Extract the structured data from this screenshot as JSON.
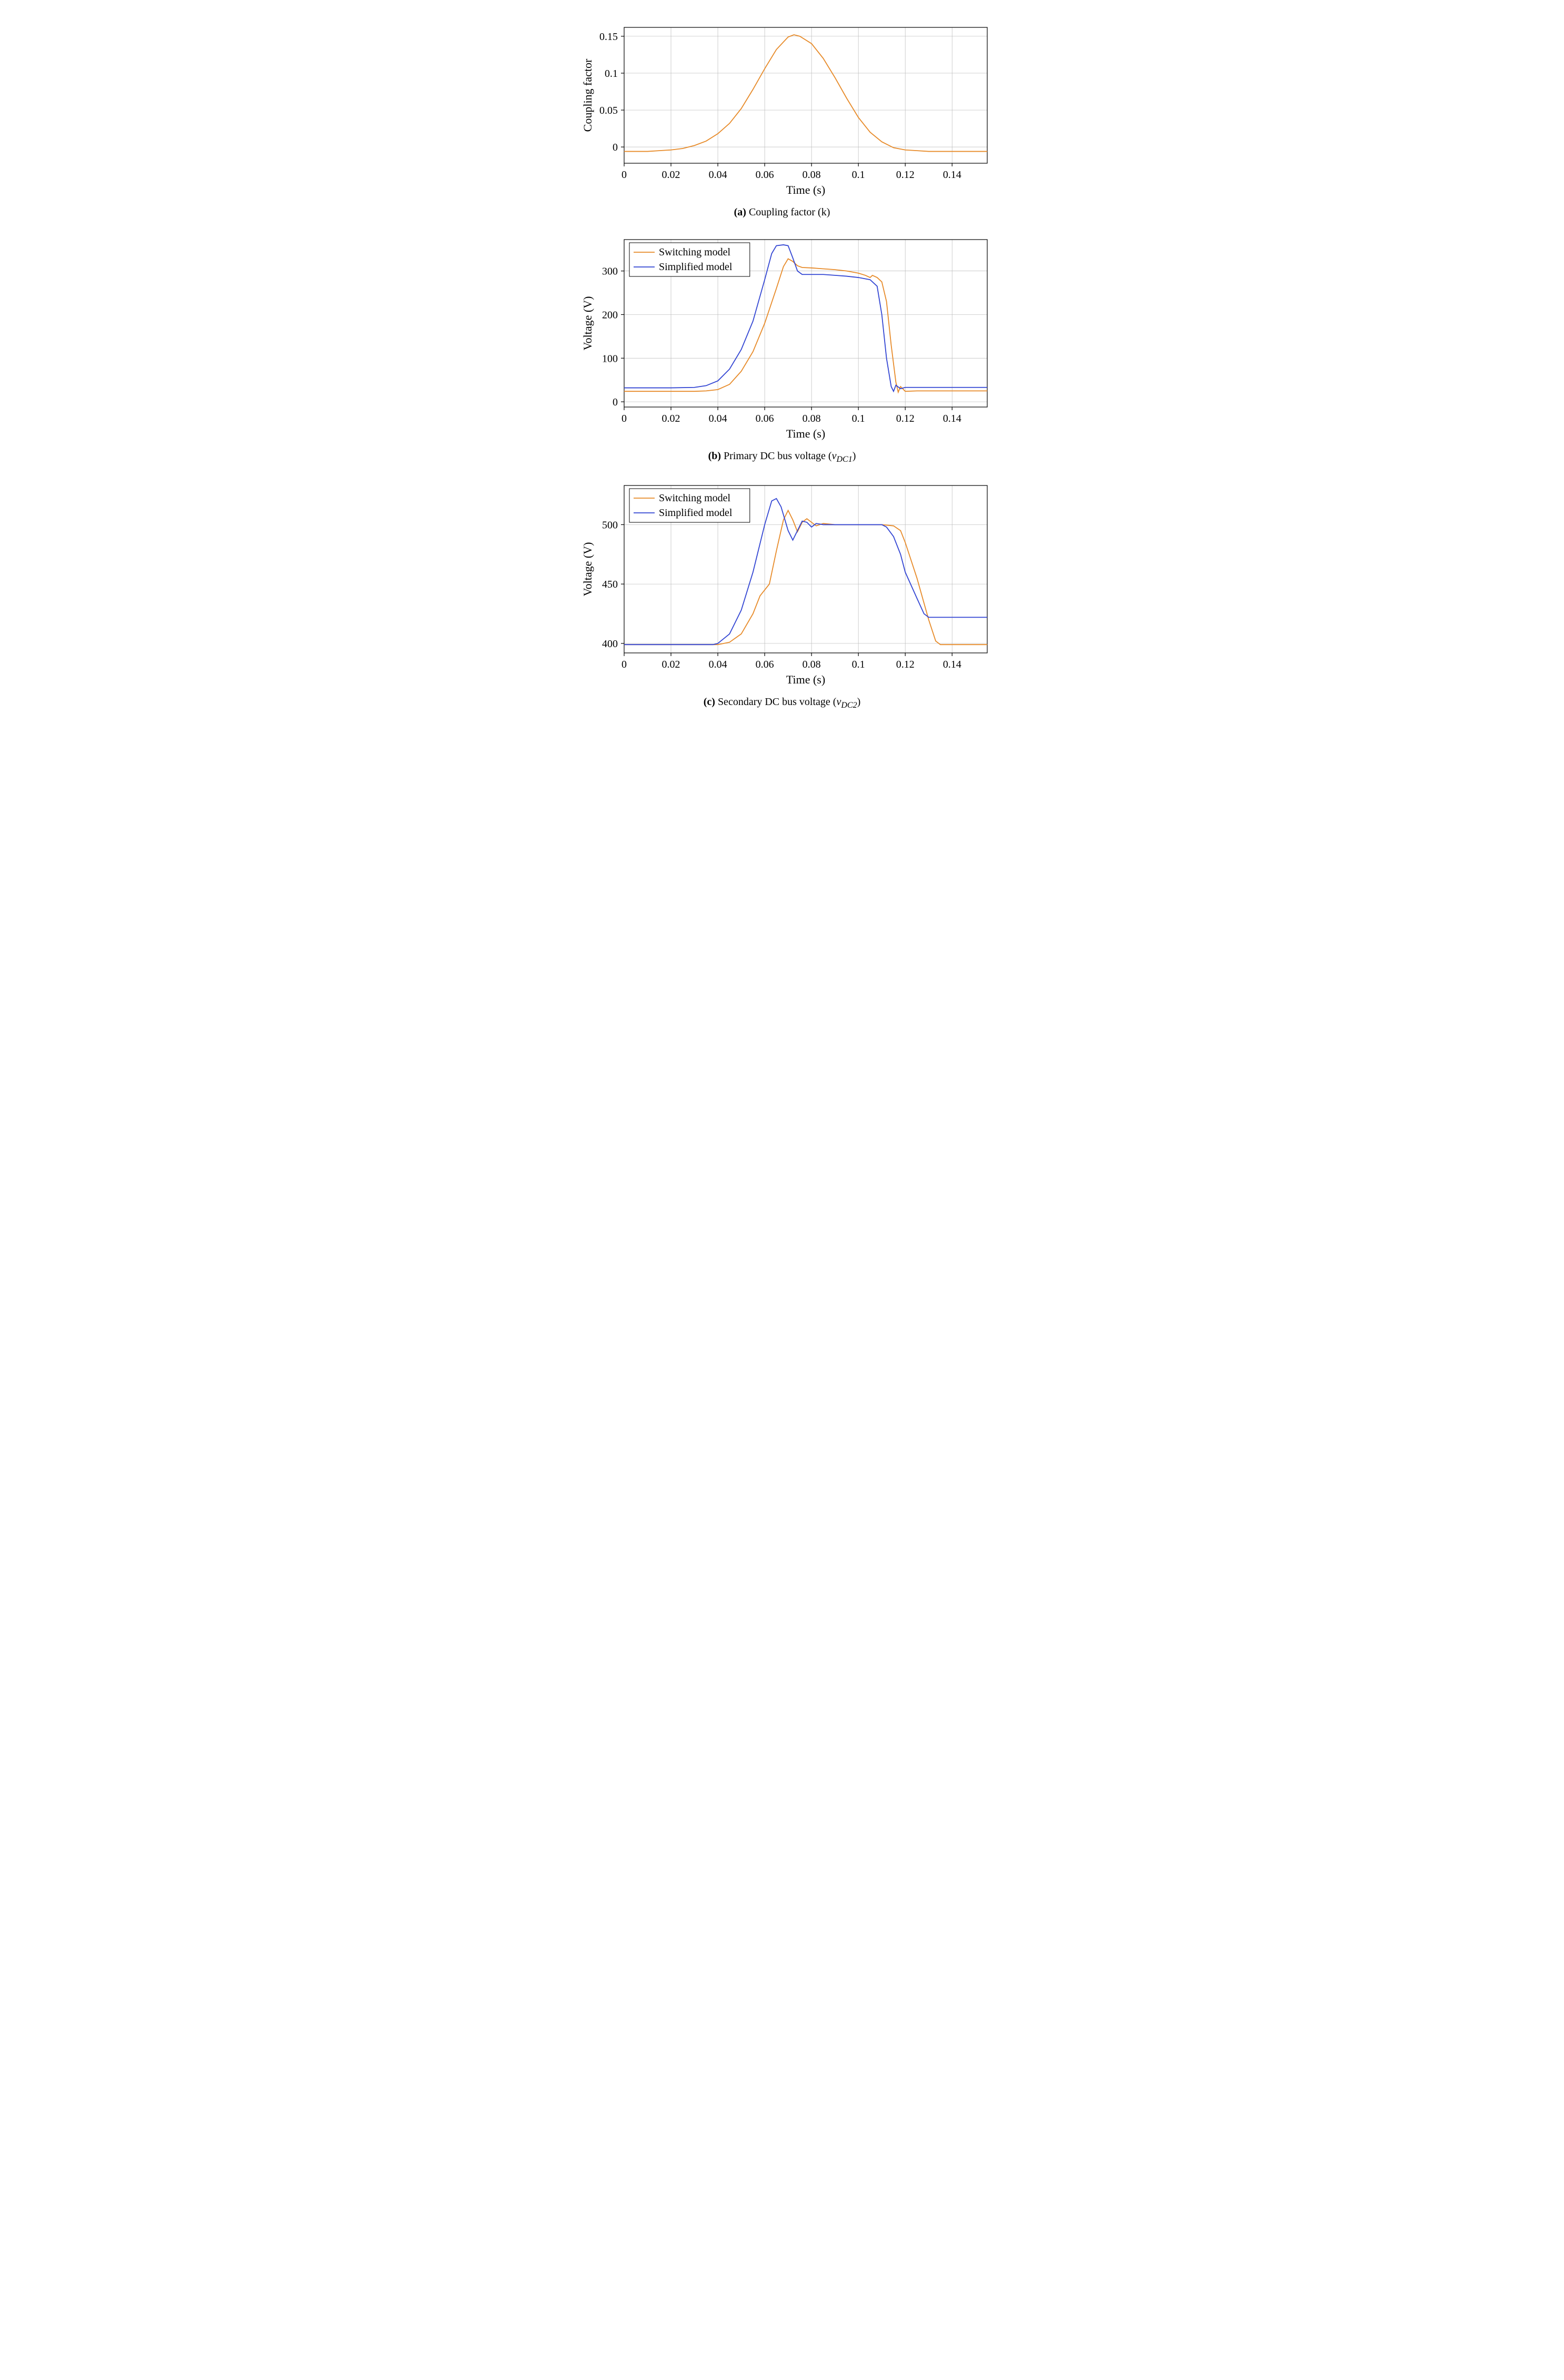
{
  "global": {
    "font_family": "Georgia, serif",
    "axis_color": "#000000",
    "grid_color": "#b8b8b8",
    "background": "#ffffff",
    "line_width": 1.8,
    "tick_fontsize": 20,
    "axis_label_fontsize": 22,
    "caption_fontsize": 20
  },
  "chart_a": {
    "type": "line",
    "xlabel": "Time (s)",
    "ylabel": "Coupling factor",
    "caption_prefix": "(a)",
    "caption_text": " Coupling factor (k)",
    "xlim": [
      0,
      0.155
    ],
    "ylim": [
      -0.022,
      0.162
    ],
    "xticks": [
      0,
      0.02,
      0.04,
      0.06,
      0.08,
      0.1,
      0.12,
      0.14
    ],
    "xtick_labels": [
      "0",
      "0.02",
      "0.04",
      "0.06",
      "0.08",
      "0.1",
      "0.12",
      "0.14"
    ],
    "yticks": [
      0,
      0.05,
      0.1,
      0.15
    ],
    "ytick_labels": [
      "0",
      "0.05",
      "0.1",
      "0.15"
    ],
    "series": [
      {
        "name": "k",
        "color": "#e78b2a",
        "data": [
          [
            0,
            -0.006
          ],
          [
            0.005,
            -0.006
          ],
          [
            0.01,
            -0.006
          ],
          [
            0.015,
            -0.005
          ],
          [
            0.02,
            -0.004
          ],
          [
            0.025,
            -0.002
          ],
          [
            0.03,
            0.002
          ],
          [
            0.035,
            0.008
          ],
          [
            0.04,
            0.018
          ],
          [
            0.045,
            0.032
          ],
          [
            0.05,
            0.052
          ],
          [
            0.055,
            0.078
          ],
          [
            0.06,
            0.106
          ],
          [
            0.065,
            0.132
          ],
          [
            0.07,
            0.149
          ],
          [
            0.0725,
            0.152
          ],
          [
            0.075,
            0.15
          ],
          [
            0.08,
            0.14
          ],
          [
            0.085,
            0.12
          ],
          [
            0.09,
            0.094
          ],
          [
            0.095,
            0.066
          ],
          [
            0.1,
            0.04
          ],
          [
            0.105,
            0.02
          ],
          [
            0.11,
            0.007
          ],
          [
            0.115,
            -0.001
          ],
          [
            0.12,
            -0.004
          ],
          [
            0.125,
            -0.005
          ],
          [
            0.13,
            -0.006
          ],
          [
            0.14,
            -0.006
          ],
          [
            0.15,
            -0.006
          ],
          [
            0.155,
            -0.006
          ]
        ]
      }
    ]
  },
  "chart_b": {
    "type": "line",
    "xlabel": "Time (s)",
    "ylabel": "Voltage (V)",
    "caption_prefix": "(b)",
    "caption_text_pre": " Primary DC bus voltage (",
    "caption_var": "v",
    "caption_sub": "DC1",
    "caption_text_post": ")",
    "xlim": [
      0,
      0.155
    ],
    "ylim": [
      -12,
      372
    ],
    "xticks": [
      0,
      0.02,
      0.04,
      0.06,
      0.08,
      0.1,
      0.12,
      0.14
    ],
    "xtick_labels": [
      "0",
      "0.02",
      "0.04",
      "0.06",
      "0.08",
      "0.1",
      "0.12",
      "0.14"
    ],
    "yticks": [
      0,
      100,
      200,
      300
    ],
    "ytick_labels": [
      "0",
      "100",
      "200",
      "300"
    ],
    "legend": {
      "position": "top-left",
      "items": [
        {
          "label": "Switching model",
          "color": "#e78b2a"
        },
        {
          "label": "Simplified model",
          "color": "#3346d3"
        }
      ]
    },
    "series": [
      {
        "name": "switching",
        "color": "#e78b2a",
        "data": [
          [
            0,
            24
          ],
          [
            0.01,
            24
          ],
          [
            0.02,
            24
          ],
          [
            0.03,
            24
          ],
          [
            0.035,
            25
          ],
          [
            0.04,
            28
          ],
          [
            0.045,
            40
          ],
          [
            0.05,
            70
          ],
          [
            0.055,
            115
          ],
          [
            0.06,
            180
          ],
          [
            0.065,
            260
          ],
          [
            0.068,
            310
          ],
          [
            0.07,
            328
          ],
          [
            0.072,
            322
          ],
          [
            0.074,
            312
          ],
          [
            0.076,
            308
          ],
          [
            0.08,
            307
          ],
          [
            0.085,
            305
          ],
          [
            0.09,
            303
          ],
          [
            0.095,
            300
          ],
          [
            0.1,
            295
          ],
          [
            0.103,
            290
          ],
          [
            0.105,
            285
          ],
          [
            0.106,
            290
          ],
          [
            0.108,
            285
          ],
          [
            0.11,
            275
          ],
          [
            0.112,
            230
          ],
          [
            0.114,
            130
          ],
          [
            0.116,
            45
          ],
          [
            0.117,
            22
          ],
          [
            0.118,
            35
          ],
          [
            0.12,
            24
          ],
          [
            0.125,
            25
          ],
          [
            0.13,
            25
          ],
          [
            0.14,
            25
          ],
          [
            0.15,
            25
          ],
          [
            0.155,
            25
          ]
        ]
      },
      {
        "name": "simplified",
        "color": "#3346d3",
        "data": [
          [
            0,
            32
          ],
          [
            0.01,
            32
          ],
          [
            0.02,
            32
          ],
          [
            0.03,
            33
          ],
          [
            0.035,
            37
          ],
          [
            0.04,
            48
          ],
          [
            0.045,
            75
          ],
          [
            0.05,
            120
          ],
          [
            0.055,
            185
          ],
          [
            0.06,
            280
          ],
          [
            0.063,
            340
          ],
          [
            0.065,
            358
          ],
          [
            0.068,
            360
          ],
          [
            0.07,
            358
          ],
          [
            0.072,
            330
          ],
          [
            0.074,
            300
          ],
          [
            0.076,
            292
          ],
          [
            0.08,
            292
          ],
          [
            0.085,
            292
          ],
          [
            0.09,
            290
          ],
          [
            0.095,
            288
          ],
          [
            0.1,
            285
          ],
          [
            0.105,
            280
          ],
          [
            0.108,
            265
          ],
          [
            0.11,
            200
          ],
          [
            0.112,
            100
          ],
          [
            0.114,
            35
          ],
          [
            0.115,
            24
          ],
          [
            0.116,
            38
          ],
          [
            0.118,
            30
          ],
          [
            0.12,
            33
          ],
          [
            0.125,
            33
          ],
          [
            0.13,
            33
          ],
          [
            0.14,
            33
          ],
          [
            0.15,
            33
          ],
          [
            0.155,
            33
          ]
        ]
      }
    ]
  },
  "chart_c": {
    "type": "line",
    "xlabel": "Time (s)",
    "ylabel": "Voltage (V)",
    "caption_prefix": "(c)",
    "caption_text_pre": " Secondary DC bus voltage (",
    "caption_var": "v",
    "caption_sub": "DC2",
    "caption_text_post": ")",
    "xlim": [
      0,
      0.155
    ],
    "ylim": [
      392,
      533
    ],
    "xticks": [
      0,
      0.02,
      0.04,
      0.06,
      0.08,
      0.1,
      0.12,
      0.14
    ],
    "xtick_labels": [
      "0",
      "0.02",
      "0.04",
      "0.06",
      "0.08",
      "0.1",
      "0.12",
      "0.14"
    ],
    "yticks": [
      400,
      450,
      500
    ],
    "ytick_labels": [
      "400",
      "450",
      "500"
    ],
    "legend": {
      "position": "top-left",
      "items": [
        {
          "label": "Switching model",
          "color": "#e78b2a"
        },
        {
          "label": "Simplified model",
          "color": "#3346d3"
        }
      ]
    },
    "series": [
      {
        "name": "switching",
        "color": "#e78b2a",
        "data": [
          [
            0,
            399
          ],
          [
            0.01,
            399
          ],
          [
            0.02,
            399
          ],
          [
            0.03,
            399
          ],
          [
            0.04,
            399
          ],
          [
            0.045,
            401
          ],
          [
            0.05,
            408
          ],
          [
            0.055,
            425
          ],
          [
            0.058,
            440
          ],
          [
            0.06,
            445
          ],
          [
            0.062,
            450
          ],
          [
            0.065,
            478
          ],
          [
            0.068,
            504
          ],
          [
            0.07,
            512
          ],
          [
            0.072,
            504
          ],
          [
            0.074,
            494
          ],
          [
            0.076,
            502
          ],
          [
            0.078,
            505
          ],
          [
            0.08,
            502
          ],
          [
            0.082,
            499
          ],
          [
            0.085,
            501
          ],
          [
            0.09,
            500
          ],
          [
            0.095,
            500
          ],
          [
            0.1,
            500
          ],
          [
            0.105,
            500
          ],
          [
            0.11,
            500
          ],
          [
            0.115,
            499
          ],
          [
            0.118,
            495
          ],
          [
            0.12,
            485
          ],
          [
            0.125,
            455
          ],
          [
            0.13,
            420
          ],
          [
            0.133,
            402
          ],
          [
            0.135,
            399
          ],
          [
            0.14,
            399
          ],
          [
            0.15,
            399
          ],
          [
            0.155,
            399
          ]
        ]
      },
      {
        "name": "simplified",
        "color": "#3346d3",
        "data": [
          [
            0,
            399
          ],
          [
            0.01,
            399
          ],
          [
            0.02,
            399
          ],
          [
            0.03,
            399
          ],
          [
            0.038,
            399
          ],
          [
            0.04,
            400
          ],
          [
            0.045,
            408
          ],
          [
            0.05,
            428
          ],
          [
            0.055,
            460
          ],
          [
            0.06,
            500
          ],
          [
            0.063,
            520
          ],
          [
            0.065,
            522
          ],
          [
            0.067,
            515
          ],
          [
            0.07,
            495
          ],
          [
            0.072,
            487
          ],
          [
            0.074,
            495
          ],
          [
            0.076,
            503
          ],
          [
            0.078,
            502
          ],
          [
            0.08,
            498
          ],
          [
            0.082,
            501
          ],
          [
            0.085,
            500
          ],
          [
            0.09,
            500
          ],
          [
            0.095,
            500
          ],
          [
            0.1,
            500
          ],
          [
            0.105,
            500
          ],
          [
            0.11,
            500
          ],
          [
            0.112,
            498
          ],
          [
            0.115,
            490
          ],
          [
            0.118,
            475
          ],
          [
            0.12,
            460
          ],
          [
            0.125,
            438
          ],
          [
            0.128,
            425
          ],
          [
            0.13,
            422
          ],
          [
            0.135,
            422
          ],
          [
            0.14,
            422
          ],
          [
            0.15,
            422
          ],
          [
            0.155,
            422
          ]
        ]
      }
    ]
  }
}
